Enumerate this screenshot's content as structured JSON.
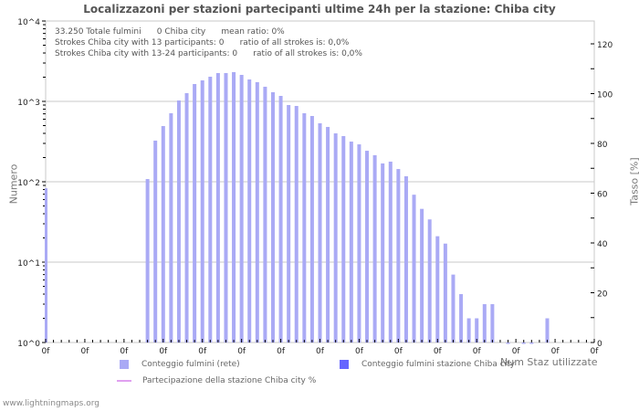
{
  "title": "Localizzazoni per stazioni partecipanti ultime 24h per la stazione: Chiba city",
  "info": {
    "line1": "33.250 Totale fulmini      0 Chiba city      mean ratio: 0%",
    "line2": "Strokes Chiba city with 13 participants: 0      ratio of all strokes is: 0,0%",
    "line3": "Strokes Chiba city with 13-24 participants: 0      ratio of all strokes is: 0,0%"
  },
  "axes": {
    "left_label": "Numero",
    "right_label": "Tasso [%]",
    "x_label": "Num Staz utilizzate",
    "left_ticks": [
      "10^4",
      "10^3",
      "10^2",
      "10^1",
      "10^0"
    ],
    "right_ticks": [
      "120",
      "100",
      "80",
      "60",
      "40",
      "20",
      "0"
    ],
    "x_tick_label": "0f"
  },
  "legend": {
    "item1": "Conteggio fulmini (rete)",
    "item2": "Conteggio fulmini stazione Chiba city",
    "item3": "Partecipazione della stazione Chiba city %"
  },
  "colors": {
    "bar_network": "#aaaaf5",
    "bar_station": "#6666ff",
    "participation_line": "#e0a0f0",
    "grid": "#c8c8c8"
  },
  "footer": "www.lightningmaps.org",
  "chart_data": {
    "type": "bar",
    "title": "Localizzazoni per stazioni partecipanti ultime 24h per la stazione: Chiba city",
    "xlabel": "Num Staz utilizzate",
    "ylabel": "Numero",
    "ylabel_right": "Tasso [%]",
    "yscale": "log",
    "ylim": [
      1,
      10000
    ],
    "ylim_right": [
      0,
      130
    ],
    "x_range": [
      0,
      70
    ],
    "x_tick_labels": [
      "0f",
      "0f",
      "0f",
      "0f",
      "0f",
      "0f",
      "0f",
      "0f",
      "0f",
      "0f",
      "0f",
      "0f",
      "0f",
      "0f",
      "0f"
    ],
    "legend_position": "bottom",
    "grid": true,
    "series": [
      {
        "name": "Conteggio fulmini (rete)",
        "x": [
          0,
          13,
          14,
          15,
          16,
          17,
          18,
          19,
          20,
          21,
          22,
          23,
          24,
          25,
          26,
          27,
          28,
          29,
          30,
          31,
          32,
          33,
          34,
          35,
          36,
          37,
          38,
          39,
          40,
          41,
          42,
          43,
          44,
          45,
          46,
          47,
          48,
          49,
          50,
          51,
          52,
          53,
          54,
          55,
          56,
          57,
          59,
          61,
          62,
          64
        ],
        "values": [
          83,
          108,
          325,
          493,
          712,
          1027,
          1266,
          1644,
          1825,
          2027,
          2250,
          2250,
          2310,
          2136,
          1874,
          1734,
          1521,
          1300,
          1170,
          901,
          877,
          712,
          658,
          534,
          481,
          400,
          370,
          316,
          292,
          243,
          214,
          169,
          178,
          144,
          117,
          69,
          46,
          34,
          21,
          17,
          7,
          4,
          2,
          2,
          3,
          3,
          1,
          1,
          1,
          2
        ]
      },
      {
        "name": "Conteggio fulmini stazione Chiba city",
        "x": [],
        "values": []
      },
      {
        "name": "Partecipazione della stazione Chiba city %",
        "x": [],
        "values": []
      }
    ]
  }
}
